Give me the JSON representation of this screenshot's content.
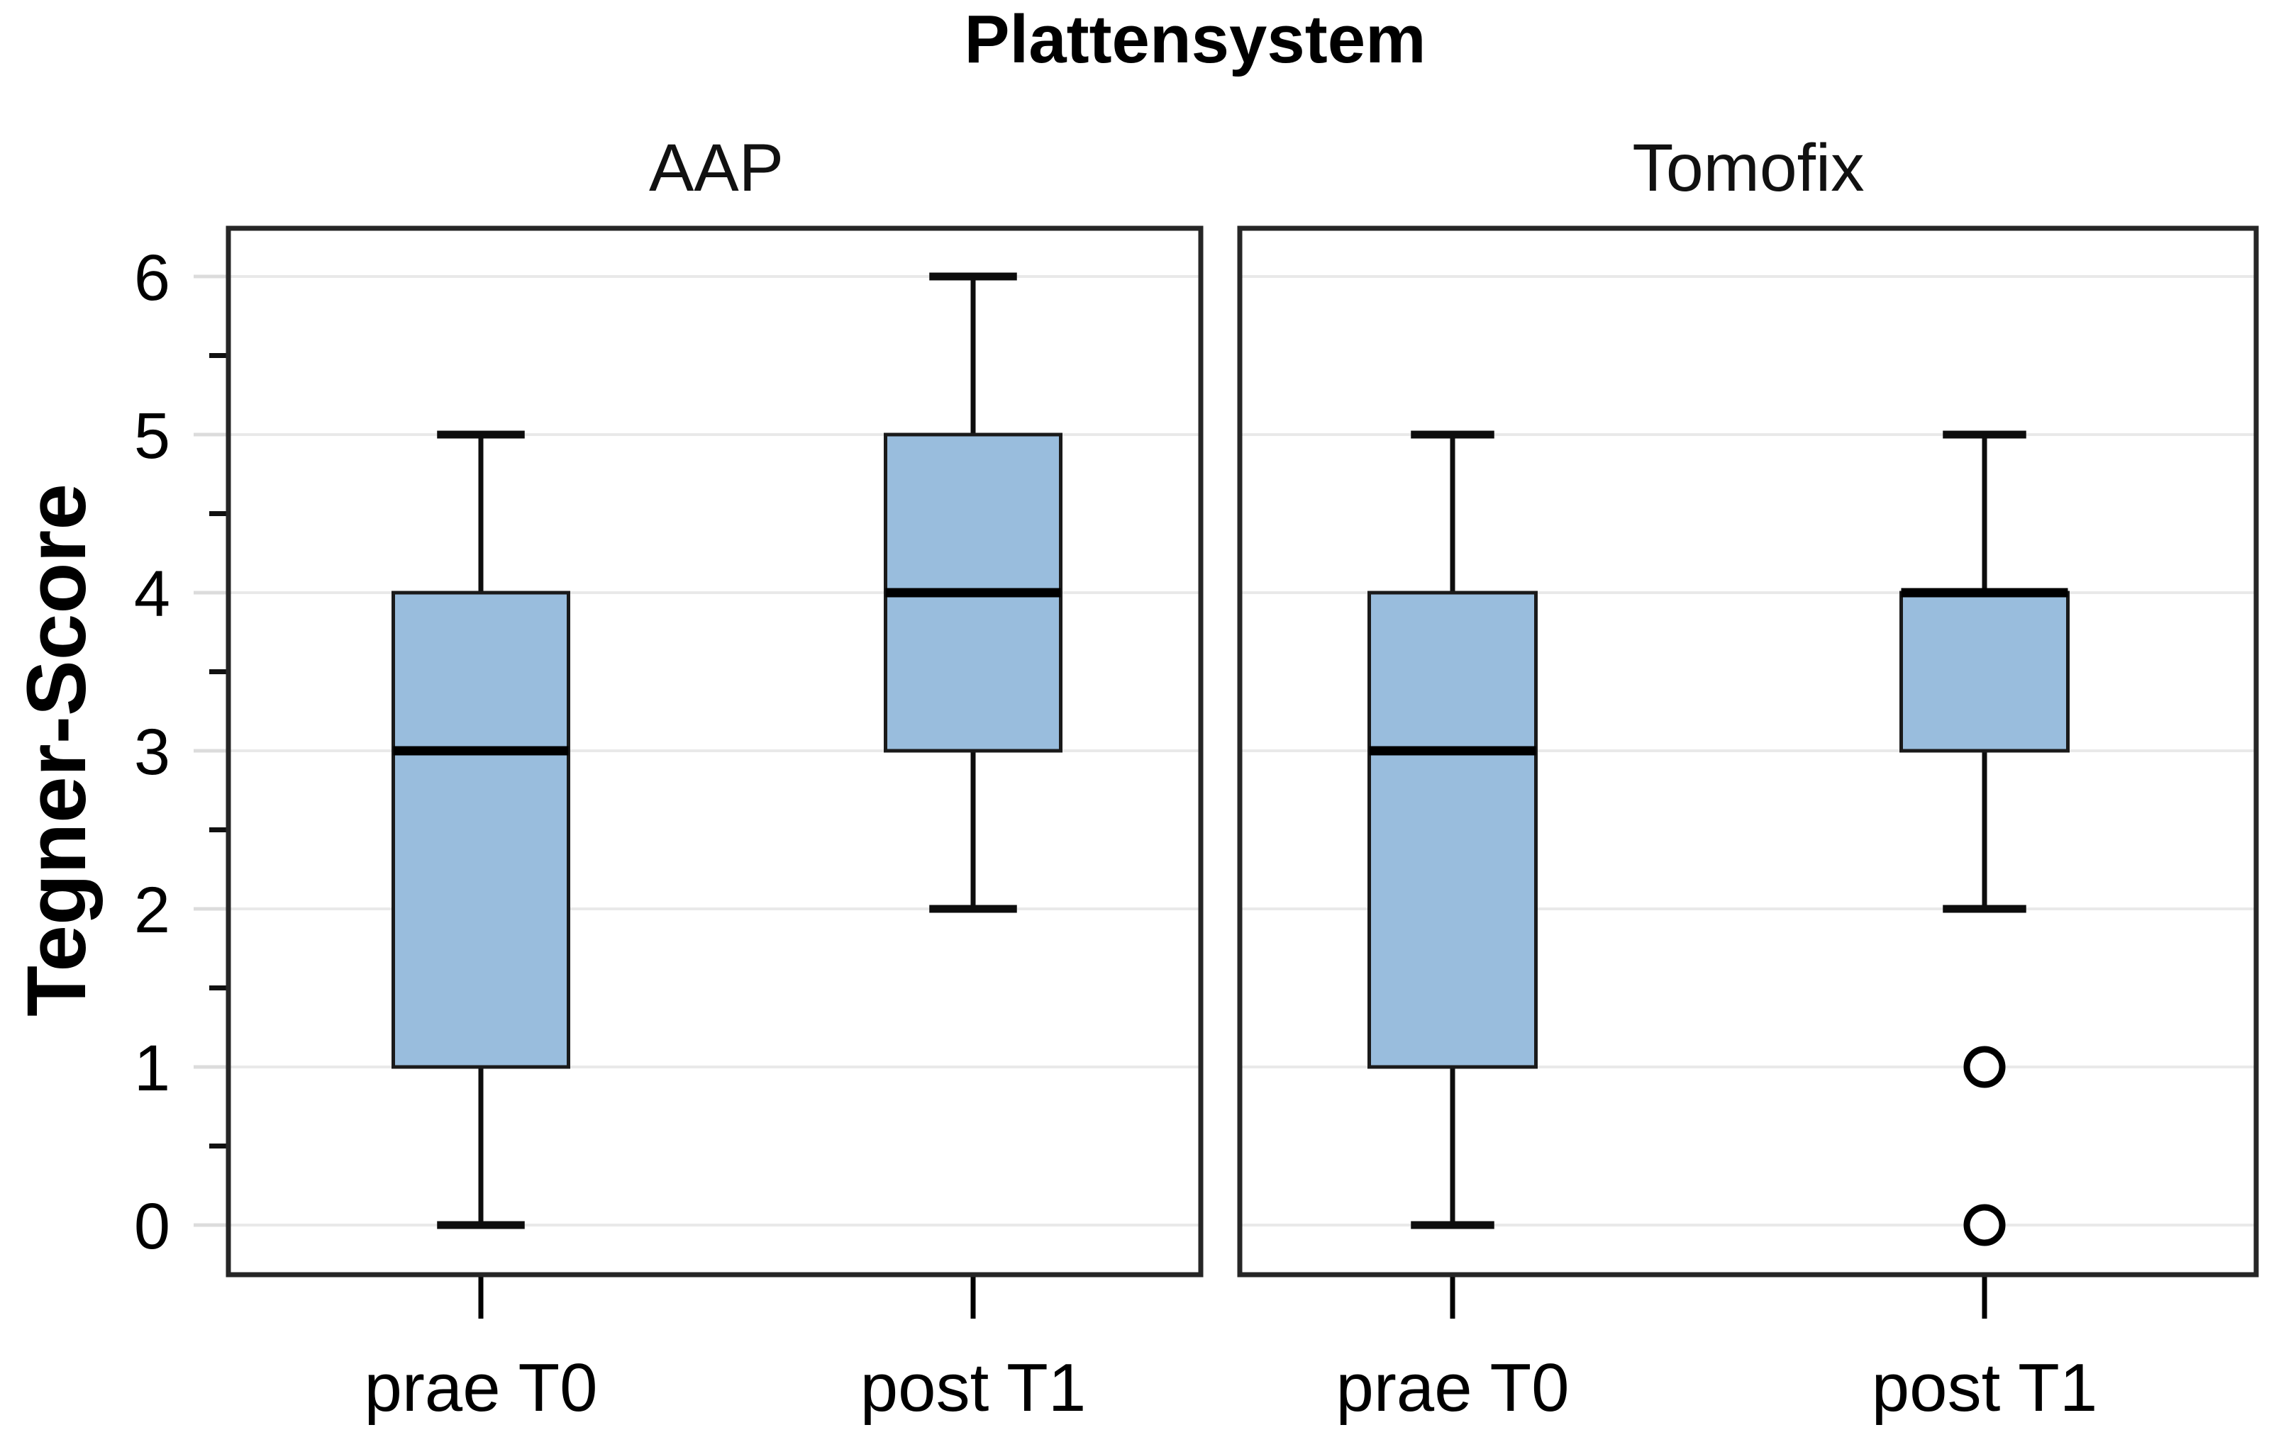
{
  "chart_data": {
    "type": "boxplot",
    "title": "Plattensystem",
    "ylabel": "Tegner-Score",
    "xlabel": "",
    "ylim": [
      -0.31,
      6.31
    ],
    "y_major_ticks": [
      0,
      1,
      2,
      3,
      4,
      5,
      6
    ],
    "y_minor_ticks": [
      0.5,
      1.5,
      2.5,
      3.5,
      4.5,
      5.5
    ],
    "grid": "horizontal-major-light",
    "legend": "none",
    "categories": [
      "prae T0",
      "post T1"
    ],
    "panels": [
      {
        "label": "AAP",
        "boxes": [
          {
            "category": "prae T0",
            "whisker_low": 0,
            "q1": 1,
            "median": 3,
            "q3": 4,
            "whisker_high": 5,
            "outliers": []
          },
          {
            "category": "post T1",
            "whisker_low": 2,
            "q1": 3,
            "median": 4,
            "q3": 5,
            "whisker_high": 6,
            "outliers": []
          }
        ]
      },
      {
        "label": "Tomofix",
        "boxes": [
          {
            "category": "prae T0",
            "whisker_low": 0,
            "q1": 1,
            "median": 3,
            "q3": 4,
            "whisker_high": 5,
            "outliers": []
          },
          {
            "category": "post T1",
            "whisker_low": 2,
            "q1": 3,
            "median": 4,
            "q3": 4,
            "whisker_high": 5,
            "outliers": [
              1,
              0
            ]
          }
        ]
      }
    ],
    "colors": {
      "box_fill": "#99bddd",
      "box_stroke": "#1a1a1a",
      "median": "#000000",
      "whisker": "#0d0d0d",
      "grid": "#e9e9e9",
      "major_tick": "#dcdcdc",
      "minor_tick": "#111111",
      "frame": "#262626",
      "text": "#000000",
      "background": "#ffffff"
    }
  }
}
